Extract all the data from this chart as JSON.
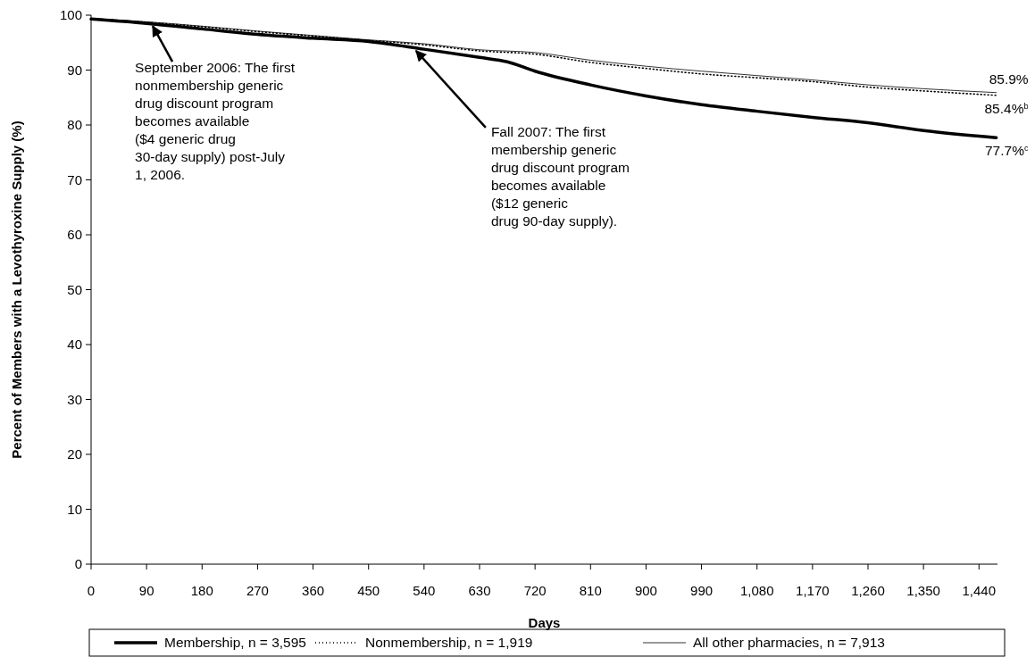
{
  "chart_data": {
    "type": "line",
    "xlabel": "Days",
    "ylabel": "Percent of Members with a Levothyroxine Supply (%)",
    "xlim": [
      0,
      1470
    ],
    "ylim": [
      0,
      100
    ],
    "xticks": [
      0,
      90,
      180,
      270,
      360,
      450,
      540,
      630,
      720,
      810,
      900,
      990,
      {
        "value": 1080,
        "label": "1,080"
      },
      {
        "value": 1170,
        "label": "1,170"
      },
      {
        "value": 1260,
        "label": "1,260"
      },
      {
        "value": 1350,
        "label": "1,350"
      },
      {
        "value": 1440,
        "label": "1,440"
      }
    ],
    "yticks": [
      0,
      10,
      20,
      30,
      40,
      50,
      60,
      70,
      80,
      90,
      100
    ],
    "legend": "bottom",
    "grid": false,
    "series": [
      {
        "name": "Membership, n = 3,595",
        "color": "#000000",
        "line_style": "solid",
        "x": [
          0,
          90,
          180,
          270,
          360,
          450,
          540,
          630,
          675,
          720,
          810,
          900,
          990,
          1080,
          1170,
          1260,
          1350,
          1468
        ],
        "values": [
          99.3,
          98.5,
          97.5,
          96.5,
          95.8,
          95.2,
          93.8,
          92.3,
          91.5,
          89.8,
          87.3,
          85.3,
          83.7,
          82.5,
          81.4,
          80.4,
          79.0,
          77.7
        ]
      },
      {
        "name": "Nonmembership, n = 1,919",
        "color": "#000000",
        "line_style": "dotted",
        "x": [
          0,
          90,
          180,
          270,
          360,
          450,
          540,
          630,
          720,
          810,
          900,
          990,
          1080,
          1170,
          1260,
          1350,
          1468
        ],
        "values": [
          99.4,
          98.7,
          97.9,
          97.0,
          96.2,
          95.4,
          94.6,
          93.5,
          92.9,
          91.4,
          90.3,
          89.3,
          88.6,
          87.9,
          86.9,
          86.2,
          85.4
        ]
      },
      {
        "name": "All other pharmacies, n = 7,913",
        "color": "#000000",
        "line_style": "solid",
        "x": [
          0,
          90,
          180,
          270,
          360,
          450,
          540,
          630,
          720,
          810,
          900,
          990,
          1080,
          1170,
          1260,
          1350,
          1468
        ],
        "values": [
          99.4,
          98.8,
          98.0,
          97.1,
          96.3,
          95.5,
          94.8,
          93.7,
          93.2,
          91.8,
          90.7,
          89.8,
          89.0,
          88.2,
          87.3,
          86.6,
          85.9
        ]
      }
    ],
    "annotations": [
      {
        "text": "September 2006: The first\nnonmembership generic\ndrug discount program\nbecomes available\n($4 generic drug\n30-day supply) post-July\n1, 2006.",
        "x": 100,
        "y": 98.5
      },
      {
        "text": "Fall 2007: The first\nmembership generic\ndrug discount program\nbecomes available\n($12 generic\ndrug 90-day supply).",
        "x": 527,
        "y": 94.0
      },
      {
        "text": "85.9%",
        "x": 1468,
        "y": 85.9
      },
      {
        "text": "85.4%$^{b}$",
        "x": 1468,
        "y": 85.4
      },
      {
        "text": "77.7%$^{c}$",
        "x": 1468,
        "y": 77.7
      }
    ]
  }
}
